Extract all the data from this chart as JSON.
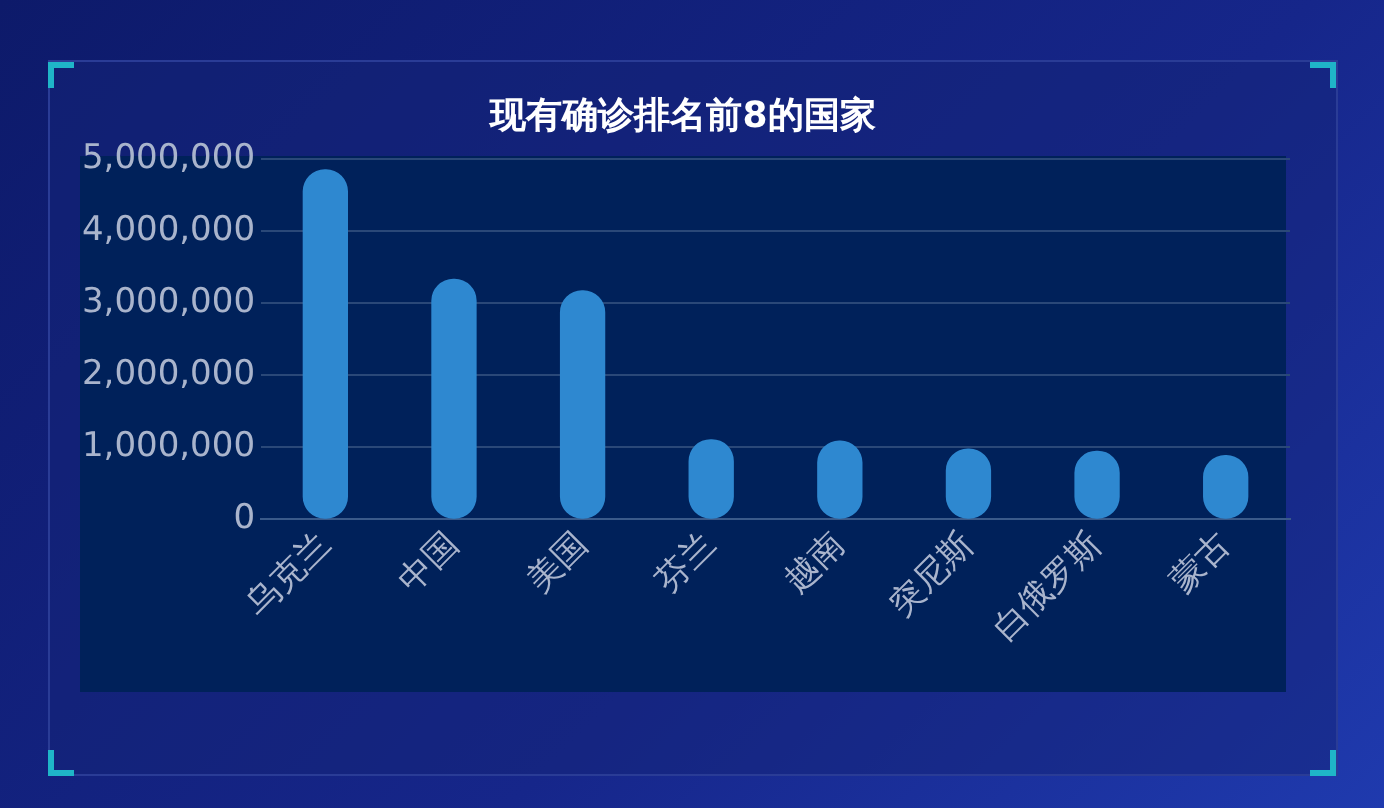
{
  "chart_data": {
    "type": "bar",
    "title": "现有确诊排名前8的国家",
    "categories": [
      "乌克兰",
      "中国",
      "美国",
      "芬兰",
      "越南",
      "突尼斯",
      "白俄罗斯",
      "蒙古"
    ],
    "values": [
      4850000,
      3330000,
      3170000,
      1100000,
      1080000,
      970000,
      940000,
      880000
    ],
    "color": "#2e88d0",
    "ylim": [
      0,
      5000000
    ],
    "yticks": [
      0,
      {
        "value": 1000000,
        "label": "1,000,000"
      },
      {
        "value": 2000000,
        "label": "2,000,000"
      },
      {
        "value": 3000000,
        "label": "3,000,000"
      },
      {
        "value": 4000000,
        "label": "4,000,000"
      },
      {
        "value": 5000000,
        "label": "5,000,000"
      }
    ],
    "grid": "y",
    "legend": false
  }
}
